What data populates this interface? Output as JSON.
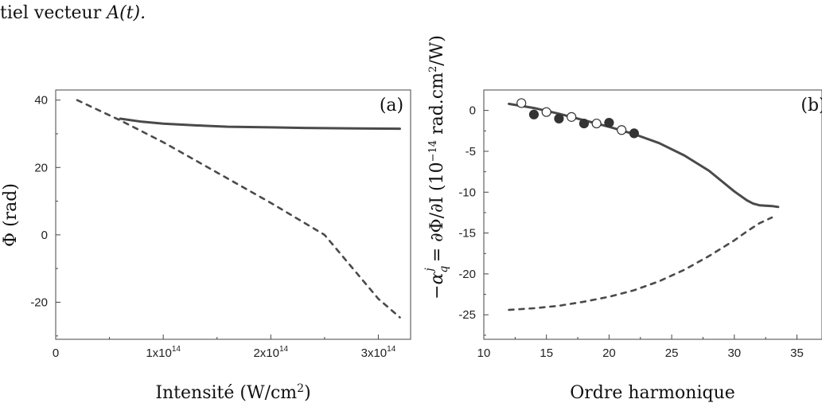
{
  "text_fragment": {
    "prefix": "tiel vecteur ",
    "math": "A(t).",
    "suffix": ""
  },
  "chart_data": [
    {
      "type": "line",
      "panel_label": "(a)",
      "xlabel": "Intensité (W/cm",
      "xlabel_sup": "2",
      "xlabel_end": ")",
      "ylabel": "Φ (rad)",
      "xlim": [
        0,
        330000000000000.0
      ],
      "ylim": [
        -31,
        43
      ],
      "xticks": [
        0,
        100000000000000.0,
        200000000000000.0,
        300000000000000.0
      ],
      "xtick_labels": [
        "0",
        "1x10",
        "2x10",
        "3x10"
      ],
      "xtick_sup": [
        "",
        "14",
        "14",
        "14"
      ],
      "yticks": [
        40,
        20,
        0,
        -20
      ],
      "ytick_labels": [
        "40",
        "20",
        "0",
        "-20"
      ],
      "series": [
        {
          "style": "solid",
          "x": [
            60000000000000.0,
            80000000000000.0,
            100000000000000.0,
            130000000000000.0,
            160000000000000.0,
            200000000000000.0,
            240000000000000.0,
            280000000000000.0,
            320000000000000.0
          ],
          "y": [
            34.5,
            33.6,
            33.0,
            32.5,
            32.1,
            31.9,
            31.7,
            31.6,
            31.5
          ]
        },
        {
          "style": "dashed",
          "x": [
            20000000000000.0,
            60000000000000.0,
            100000000000000.0,
            150000000000000.0,
            200000000000000.0,
            250000000000000.0,
            300000000000000.0,
            320000000000000.0
          ],
          "y": [
            40,
            34,
            27.5,
            18.5,
            9.5,
            0,
            -19,
            -24.5
          ]
        }
      ]
    },
    {
      "type": "line",
      "panel_label": "(b)",
      "xlabel": "Ordre harmonique",
      "ylabel": "−α",
      "ylabel_sub": "q",
      "ylabel_sup": "j",
      "ylabel_rest": " = ∂Φ/∂I (10",
      "ylabel_exp": "−14",
      "ylabel_unit": " rad.cm",
      "ylabel_unit_sup": "2",
      "ylabel_end": "/W)",
      "xlim": [
        10,
        37
      ],
      "ylim": [
        -28,
        2.5
      ],
      "xticks": [
        10,
        15,
        20,
        25,
        30,
        35
      ],
      "xtick_labels": [
        "10",
        "15",
        "20",
        "25",
        "30",
        "35"
      ],
      "yticks": [
        0,
        -5,
        -10,
        -15,
        -20,
        -25
      ],
      "ytick_labels": [
        "0",
        "-5",
        "-10",
        "-15",
        "-20",
        "-25"
      ],
      "series": [
        {
          "style": "solid",
          "x": [
            12,
            14,
            16,
            18,
            20,
            22,
            24,
            26,
            28,
            30,
            31,
            31.5,
            32,
            33,
            33.5
          ],
          "y": [
            0.8,
            0.3,
            -0.4,
            -1.2,
            -2.0,
            -2.9,
            -4.0,
            -5.5,
            -7.4,
            -9.9,
            -11.0,
            -11.4,
            -11.6,
            -11.7,
            -11.8
          ]
        },
        {
          "style": "dashed",
          "x": [
            12,
            14,
            16,
            18,
            20,
            22,
            24,
            26,
            28,
            30,
            31,
            32,
            33
          ],
          "y": [
            -24.4,
            -24.2,
            -23.9,
            -23.4,
            -22.8,
            -22.0,
            -20.9,
            -19.5,
            -17.8,
            -15.9,
            -14.8,
            -13.8,
            -13.1
          ]
        },
        {
          "style": "open-markers",
          "x": [
            13,
            15,
            17,
            19,
            21
          ],
          "y": [
            0.9,
            -0.2,
            -0.8,
            -1.6,
            -2.4
          ]
        },
        {
          "style": "filled-markers",
          "x": [
            14,
            16,
            18,
            20,
            22
          ],
          "y": [
            -0.5,
            -1.0,
            -1.6,
            -1.5,
            -2.8
          ]
        }
      ]
    }
  ]
}
